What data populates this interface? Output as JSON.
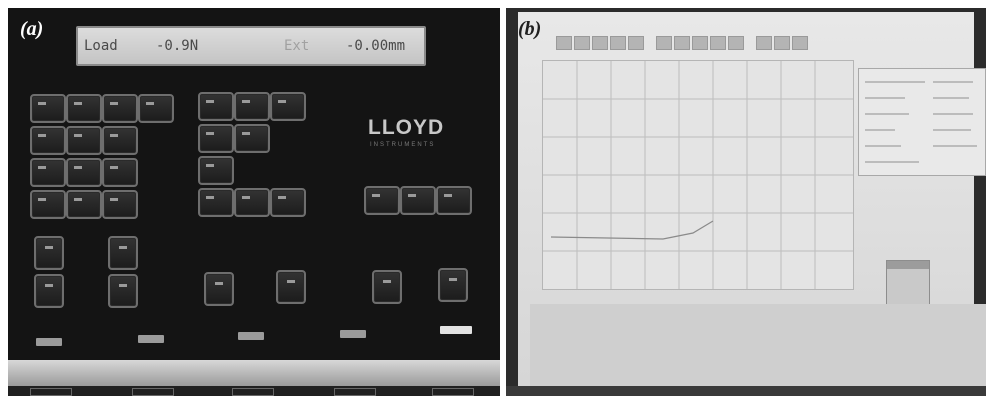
{
  "panel_a": {
    "label": "(a)",
    "lcd": {
      "left_label": "Load",
      "left_value": "-0.9N",
      "right_label": "Ext",
      "right_value": "-0.00mm"
    },
    "logo": "LLOYD",
    "logo_sub": "INSTRUMENTS"
  },
  "panel_b": {
    "label": "(b)"
  },
  "colors": {
    "panel_bg": "#141414",
    "lcd_bg": "#d0d0d0",
    "screen_bg": "#e0e0e0"
  }
}
